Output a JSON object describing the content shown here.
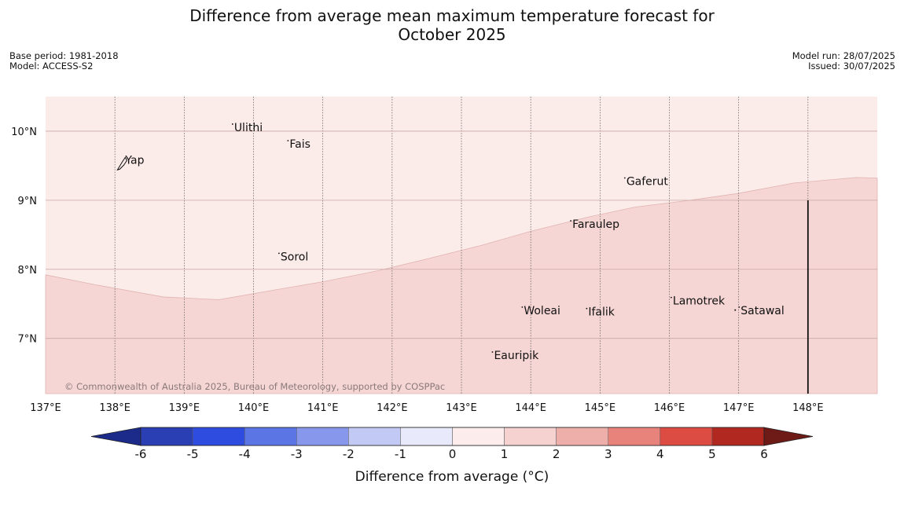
{
  "header": {
    "title_line1": "Difference from average mean maximum temperature forecast for",
    "title_line2": "October 2025",
    "base_period": "Base period: 1981-2018",
    "model": "Model: ACCESS-S2",
    "model_run": "Model run: 28/07/2025",
    "issued": "Issued: 30/07/2025"
  },
  "map": {
    "lon_range": [
      137,
      149
    ],
    "lat_range": [
      6.2,
      10.5
    ],
    "lon_ticks": [
      "137°E",
      "138°E",
      "139°E",
      "140°E",
      "141°E",
      "142°E",
      "143°E",
      "144°E",
      "145°E",
      "146°E",
      "147°E",
      "148°E"
    ],
    "lat_ticks": [
      "10°N",
      "9°N",
      "8°N",
      "7°N"
    ],
    "colors": {
      "band_0_1": "#fbebe9",
      "band_1_2": "#f5d6d4",
      "grid": "#555555"
    },
    "places": [
      {
        "name": "Yap",
        "lon": 138.15,
        "lat": 9.53
      },
      {
        "name": "Ulithi",
        "lon": 139.72,
        "lat": 10.0
      },
      {
        "name": "Fais",
        "lon": 140.52,
        "lat": 9.76
      },
      {
        "name": "Gaferut",
        "lon": 145.38,
        "lat": 9.22
      },
      {
        "name": "Faraulep",
        "lon": 144.6,
        "lat": 8.6
      },
      {
        "name": "Sorol",
        "lon": 140.39,
        "lat": 8.13
      },
      {
        "name": "Lamotrek",
        "lon": 146.05,
        "lat": 7.49
      },
      {
        "name": "Woleai",
        "lon": 143.9,
        "lat": 7.35
      },
      {
        "name": "Ifalik",
        "lon": 144.83,
        "lat": 7.33
      },
      {
        "name": "Satawal",
        "lon": 147.03,
        "lat": 7.35
      },
      {
        "name": "Eauripik",
        "lon": 143.47,
        "lat": 6.7
      }
    ],
    "copyright": "© Commonwealth of Australia 2025, Bureau of Meteorology, supported by COSPPac"
  },
  "colorbar": {
    "title": "Difference from average (°C)",
    "ticks": [
      "-6",
      "-5",
      "-4",
      "-3",
      "-2",
      "-1",
      "0",
      "1",
      "2",
      "3",
      "4",
      "5",
      "6"
    ],
    "colors": [
      "#1c2a8a",
      "#2a3fb4",
      "#2f4ce0",
      "#5b75e5",
      "#8797ec",
      "#c2c9f4",
      "#e8eafb",
      "#fcecec",
      "#f5d1cf",
      "#eeaea9",
      "#e8837c",
      "#dc4c42",
      "#b0281f",
      "#6e1a17"
    ]
  }
}
